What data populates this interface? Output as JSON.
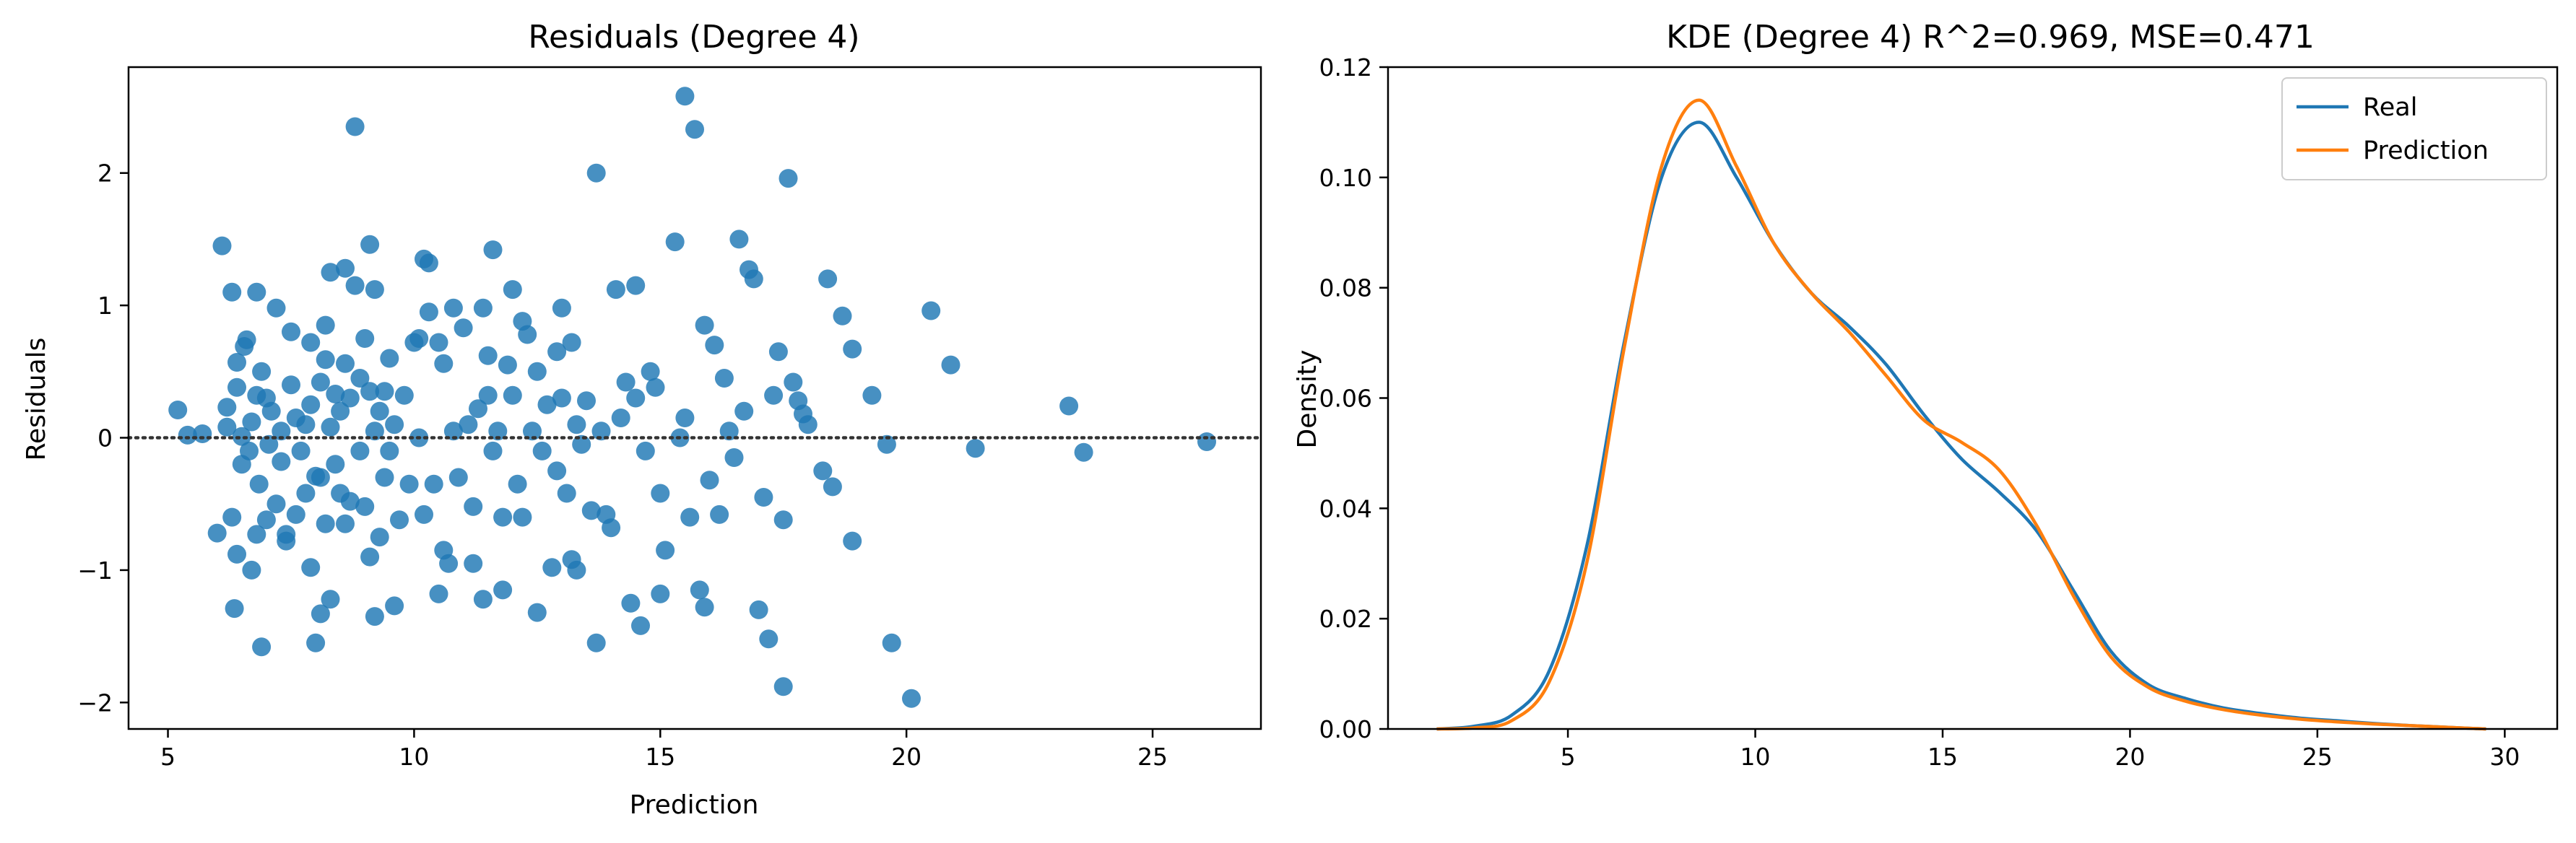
{
  "chart_data": [
    {
      "type": "scatter",
      "title": "Residuals (Degree 4)",
      "xlabel": "Prediction",
      "ylabel": "Residuals",
      "xlim": [
        4.2,
        27.2
      ],
      "ylim": [
        -2.2,
        2.8
      ],
      "xticks": [
        5,
        10,
        15,
        20,
        25
      ],
      "yticks": [
        -2,
        -1,
        0,
        1,
        2
      ],
      "xtick_labels": [
        "5",
        "10",
        "15",
        "20",
        "25"
      ],
      "ytick_labels": [
        "−2",
        "−1",
        "0",
        "1",
        "2"
      ],
      "reference_line": {
        "y": 0,
        "style": "dotted"
      },
      "grid": false,
      "color": "#1f77b4",
      "points": [
        [
          5.2,
          0.21
        ],
        [
          5.4,
          0.02
        ],
        [
          5.7,
          0.03
        ],
        [
          6.0,
          -0.72
        ],
        [
          6.1,
          1.45
        ],
        [
          6.2,
          0.23
        ],
        [
          6.2,
          0.08
        ],
        [
          6.3,
          1.1
        ],
        [
          6.3,
          -0.6
        ],
        [
          6.4,
          -0.88
        ],
        [
          6.35,
          -1.29
        ],
        [
          6.4,
          0.38
        ],
        [
          6.4,
          0.57
        ],
        [
          6.5,
          0.01
        ],
        [
          6.5,
          -0.2
        ],
        [
          6.55,
          0.69
        ],
        [
          6.6,
          0.74
        ],
        [
          6.65,
          -0.1
        ],
        [
          6.7,
          -1.0
        ],
        [
          6.7,
          0.12
        ],
        [
          6.8,
          1.1
        ],
        [
          6.8,
          -0.73
        ],
        [
          6.8,
          0.32
        ],
        [
          6.85,
          -0.35
        ],
        [
          6.9,
          0.5
        ],
        [
          6.9,
          -1.58
        ],
        [
          7.0,
          -0.62
        ],
        [
          7.0,
          0.3
        ],
        [
          7.05,
          -0.05
        ],
        [
          7.1,
          0.2
        ],
        [
          7.2,
          0.98
        ],
        [
          7.2,
          -0.5
        ],
        [
          7.3,
          0.05
        ],
        [
          7.3,
          -0.18
        ],
        [
          7.4,
          -0.73
        ],
        [
          7.4,
          -0.78
        ],
        [
          7.5,
          0.8
        ],
        [
          7.5,
          0.4
        ],
        [
          7.6,
          -0.58
        ],
        [
          7.6,
          0.15
        ],
        [
          7.7,
          -0.1
        ],
        [
          7.8,
          0.1
        ],
        [
          7.8,
          -0.42
        ],
        [
          7.9,
          0.72
        ],
        [
          7.9,
          0.25
        ],
        [
          7.9,
          -0.98
        ],
        [
          8.0,
          -0.29
        ],
        [
          8.0,
          -1.55
        ],
        [
          8.1,
          0.42
        ],
        [
          8.1,
          -0.3
        ],
        [
          8.1,
          -1.33
        ],
        [
          8.2,
          0.59
        ],
        [
          8.2,
          0.85
        ],
        [
          8.2,
          -0.65
        ],
        [
          8.3,
          1.25
        ],
        [
          8.3,
          0.08
        ],
        [
          8.3,
          -1.22
        ],
        [
          8.4,
          0.33
        ],
        [
          8.4,
          -0.2
        ],
        [
          8.5,
          0.2
        ],
        [
          8.5,
          -0.42
        ],
        [
          8.6,
          1.28
        ],
        [
          8.6,
          0.56
        ],
        [
          8.6,
          -0.65
        ],
        [
          8.7,
          0.3
        ],
        [
          8.7,
          -0.48
        ],
        [
          8.8,
          1.15
        ],
        [
          8.8,
          2.35
        ],
        [
          8.9,
          0.45
        ],
        [
          8.9,
          -0.1
        ],
        [
          9.0,
          -0.52
        ],
        [
          9.0,
          0.75
        ],
        [
          9.1,
          1.46
        ],
        [
          9.1,
          0.35
        ],
        [
          9.1,
          -0.9
        ],
        [
          9.2,
          1.12
        ],
        [
          9.2,
          0.05
        ],
        [
          9.2,
          -1.35
        ],
        [
          9.3,
          0.2
        ],
        [
          9.3,
          -0.75
        ],
        [
          9.4,
          -0.3
        ],
        [
          9.4,
          0.35
        ],
        [
          9.5,
          0.6
        ],
        [
          9.5,
          -0.1
        ],
        [
          9.6,
          -1.27
        ],
        [
          9.6,
          0.1
        ],
        [
          9.7,
          -0.62
        ],
        [
          9.8,
          0.32
        ],
        [
          9.9,
          -0.35
        ],
        [
          10.0,
          0.72
        ],
        [
          10.1,
          0.75
        ],
        [
          10.1,
          0.0
        ],
        [
          10.2,
          1.35
        ],
        [
          10.2,
          -0.58
        ],
        [
          10.3,
          1.32
        ],
        [
          10.3,
          0.95
        ],
        [
          10.4,
          -0.35
        ],
        [
          10.5,
          0.72
        ],
        [
          10.5,
          -1.18
        ],
        [
          10.6,
          0.56
        ],
        [
          10.6,
          -0.85
        ],
        [
          10.7,
          -0.95
        ],
        [
          10.8,
          0.05
        ],
        [
          10.8,
          0.98
        ],
        [
          10.9,
          -0.3
        ],
        [
          11.0,
          0.83
        ],
        [
          11.1,
          0.1
        ],
        [
          11.2,
          -0.52
        ],
        [
          11.2,
          -0.95
        ],
        [
          11.3,
          0.22
        ],
        [
          11.4,
          0.98
        ],
        [
          11.4,
          -1.22
        ],
        [
          11.5,
          0.32
        ],
        [
          11.5,
          0.62
        ],
        [
          11.6,
          -0.1
        ],
        [
          11.6,
          1.42
        ],
        [
          11.7,
          0.05
        ],
        [
          11.8,
          -1.15
        ],
        [
          11.8,
          -0.6
        ],
        [
          11.9,
          0.55
        ],
        [
          12.0,
          1.12
        ],
        [
          12.0,
          0.32
        ],
        [
          12.1,
          -0.35
        ],
        [
          12.2,
          0.88
        ],
        [
          12.2,
          -0.6
        ],
        [
          12.3,
          0.78
        ],
        [
          12.4,
          0.05
        ],
        [
          12.5,
          -1.32
        ],
        [
          12.5,
          0.5
        ],
        [
          12.6,
          -0.1
        ],
        [
          12.7,
          0.25
        ],
        [
          12.8,
          -0.98
        ],
        [
          12.9,
          0.65
        ],
        [
          12.9,
          -0.25
        ],
        [
          13.0,
          0.3
        ],
        [
          13.0,
          0.98
        ],
        [
          13.1,
          -0.42
        ],
        [
          13.2,
          0.72
        ],
        [
          13.2,
          -0.92
        ],
        [
          13.3,
          -1.0
        ],
        [
          13.3,
          0.1
        ],
        [
          13.4,
          -0.05
        ],
        [
          13.5,
          0.28
        ],
        [
          13.6,
          -0.55
        ],
        [
          13.7,
          2.0
        ],
        [
          13.7,
          -1.55
        ],
        [
          13.8,
          0.05
        ],
        [
          13.9,
          -0.58
        ],
        [
          14.0,
          -0.68
        ],
        [
          14.1,
          1.12
        ],
        [
          14.2,
          0.15
        ],
        [
          14.3,
          0.42
        ],
        [
          14.4,
          -1.25
        ],
        [
          14.5,
          0.3
        ],
        [
          14.5,
          1.15
        ],
        [
          14.6,
          -1.42
        ],
        [
          14.7,
          -0.1
        ],
        [
          14.8,
          0.5
        ],
        [
          14.9,
          0.38
        ],
        [
          15.0,
          -0.42
        ],
        [
          15.0,
          -1.18
        ],
        [
          15.1,
          -0.85
        ],
        [
          15.3,
          1.48
        ],
        [
          15.4,
          0.0
        ],
        [
          15.5,
          2.58
        ],
        [
          15.5,
          0.15
        ],
        [
          15.6,
          -0.6
        ],
        [
          15.7,
          2.33
        ],
        [
          15.8,
          -1.15
        ],
        [
          15.9,
          -1.28
        ],
        [
          15.9,
          0.85
        ],
        [
          16.0,
          -0.32
        ],
        [
          16.1,
          0.7
        ],
        [
          16.2,
          -0.58
        ],
        [
          16.3,
          0.45
        ],
        [
          16.4,
          0.05
        ],
        [
          16.5,
          -0.15
        ],
        [
          16.6,
          1.5
        ],
        [
          16.7,
          0.2
        ],
        [
          16.8,
          1.27
        ],
        [
          16.9,
          1.2
        ],
        [
          17.0,
          -1.3
        ],
        [
          17.1,
          -0.45
        ],
        [
          17.2,
          -1.52
        ],
        [
          17.3,
          0.32
        ],
        [
          17.4,
          0.65
        ],
        [
          17.5,
          -0.62
        ],
        [
          17.5,
          -1.88
        ],
        [
          17.6,
          1.96
        ],
        [
          17.7,
          0.42
        ],
        [
          17.8,
          0.28
        ],
        [
          17.9,
          0.18
        ],
        [
          18.0,
          0.1
        ],
        [
          18.3,
          -0.25
        ],
        [
          18.4,
          1.2
        ],
        [
          18.5,
          -0.37
        ],
        [
          18.7,
          0.92
        ],
        [
          18.9,
          -0.78
        ],
        [
          18.9,
          0.67
        ],
        [
          19.3,
          0.32
        ],
        [
          19.6,
          -0.05
        ],
        [
          19.7,
          -1.55
        ],
        [
          20.1,
          -1.97
        ],
        [
          20.5,
          0.96
        ],
        [
          20.9,
          0.55
        ],
        [
          21.4,
          -0.08
        ],
        [
          23.3,
          0.24
        ],
        [
          23.6,
          -0.11
        ],
        [
          26.1,
          -0.03
        ]
      ]
    },
    {
      "type": "line",
      "title": "KDE (Degree 4) R^2=0.969, MSE=0.471",
      "xlabel": "",
      "ylabel": "Density",
      "xlim": [
        0.2,
        31.4
      ],
      "ylim": [
        0,
        0.12
      ],
      "xticks": [
        5,
        10,
        15,
        20,
        25,
        30
      ],
      "yticks": [
        0,
        0.02,
        0.04,
        0.06,
        0.08,
        0.1,
        0.12
      ],
      "xtick_labels": [
        "5",
        "10",
        "15",
        "20",
        "25",
        "30"
      ],
      "ytick_labels": [
        "0.00",
        "0.02",
        "0.04",
        "0.06",
        "0.08",
        "0.10",
        "0.12"
      ],
      "grid": false,
      "legend": {
        "position": "top-right",
        "entries": [
          "Real",
          "Prediction"
        ]
      },
      "series": [
        {
          "name": "Real",
          "color": "#1f77b4",
          "x": [
            1.5,
            2.5,
            3.5,
            4.5,
            5.5,
            6.5,
            7.5,
            8.5,
            9.5,
            10.5,
            11.5,
            12.5,
            13.5,
            14.5,
            15.5,
            16.5,
            17.5,
            18.5,
            19.5,
            20.5,
            21.5,
            22.5,
            23.5,
            24.5,
            25.5,
            26.5,
            27.5,
            28.5,
            29.5
          ],
          "y": [
            0.0,
            0.0005,
            0.0025,
            0.0105,
            0.033,
            0.07,
            0.1,
            0.11,
            0.1,
            0.088,
            0.079,
            0.073,
            0.066,
            0.057,
            0.049,
            0.043,
            0.036,
            0.025,
            0.014,
            0.008,
            0.0055,
            0.0038,
            0.0028,
            0.002,
            0.0015,
            0.001,
            0.0006,
            0.0003,
            0.0
          ]
        },
        {
          "name": "Prediction",
          "color": "#ff7f0e",
          "x": [
            1.5,
            2.5,
            3.5,
            4.5,
            5.5,
            6.5,
            7.5,
            8.5,
            9.5,
            10.5,
            11.5,
            12.5,
            13.5,
            14.5,
            15.5,
            16.5,
            17.5,
            18.5,
            19.5,
            20.5,
            21.5,
            22.5,
            23.5,
            24.5,
            25.5,
            26.5,
            27.5,
            28.5,
            29.5
          ],
          "y": [
            0.0,
            0.0002,
            0.0015,
            0.0085,
            0.03,
            0.069,
            0.102,
            0.114,
            0.102,
            0.088,
            0.079,
            0.072,
            0.064,
            0.056,
            0.052,
            0.047,
            0.037,
            0.024,
            0.013,
            0.0075,
            0.005,
            0.0035,
            0.0025,
            0.0018,
            0.0013,
            0.0009,
            0.0006,
            0.0003,
            0.0
          ]
        }
      ]
    }
  ]
}
